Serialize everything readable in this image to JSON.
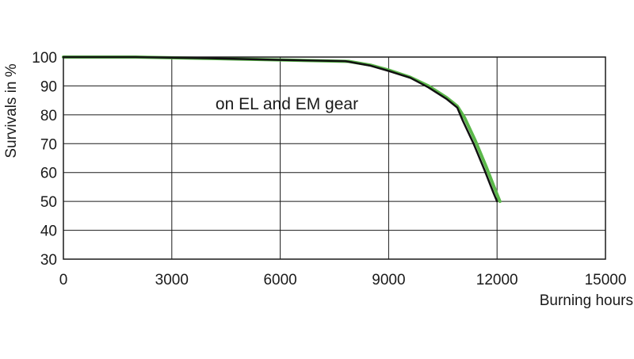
{
  "chart_data": {
    "type": "line",
    "title": "",
    "xlabel": "Burning hours",
    "ylabel": "Survivals in %",
    "xlim": [
      0,
      15000
    ],
    "ylim": [
      30,
      100
    ],
    "xticks": [
      "0",
      "3000",
      "6000",
      "9000",
      "12000",
      "15000"
    ],
    "yticks": [
      "30",
      "40",
      "50",
      "60",
      "70",
      "80",
      "90",
      "100"
    ],
    "grid": true,
    "annotation": "on EL and EM gear",
    "series": [
      {
        "color": "#5bb84a",
        "x": [
          0,
          2000,
          4000,
          6000,
          7900,
          8500,
          9000,
          9600,
          10100,
          10600,
          10900,
          11100,
          11400,
          11700,
          11950,
          12080
        ],
        "y": [
          100,
          100,
          99.5,
          99,
          98.5,
          97.2,
          95.5,
          93,
          90,
          86,
          83,
          79,
          71,
          62,
          54,
          50
        ]
      },
      {
        "color": "#111111",
        "x": [
          0,
          2000,
          4000,
          6000,
          7800,
          8500,
          9000,
          9600,
          10100,
          10600,
          10900,
          11050,
          11350,
          11650,
          11900,
          12000
        ],
        "y": [
          100,
          100,
          99.6,
          99,
          98.6,
          97,
          95.2,
          92.8,
          89.5,
          85.5,
          82.5,
          78,
          70,
          61,
          53,
          50
        ]
      }
    ]
  }
}
